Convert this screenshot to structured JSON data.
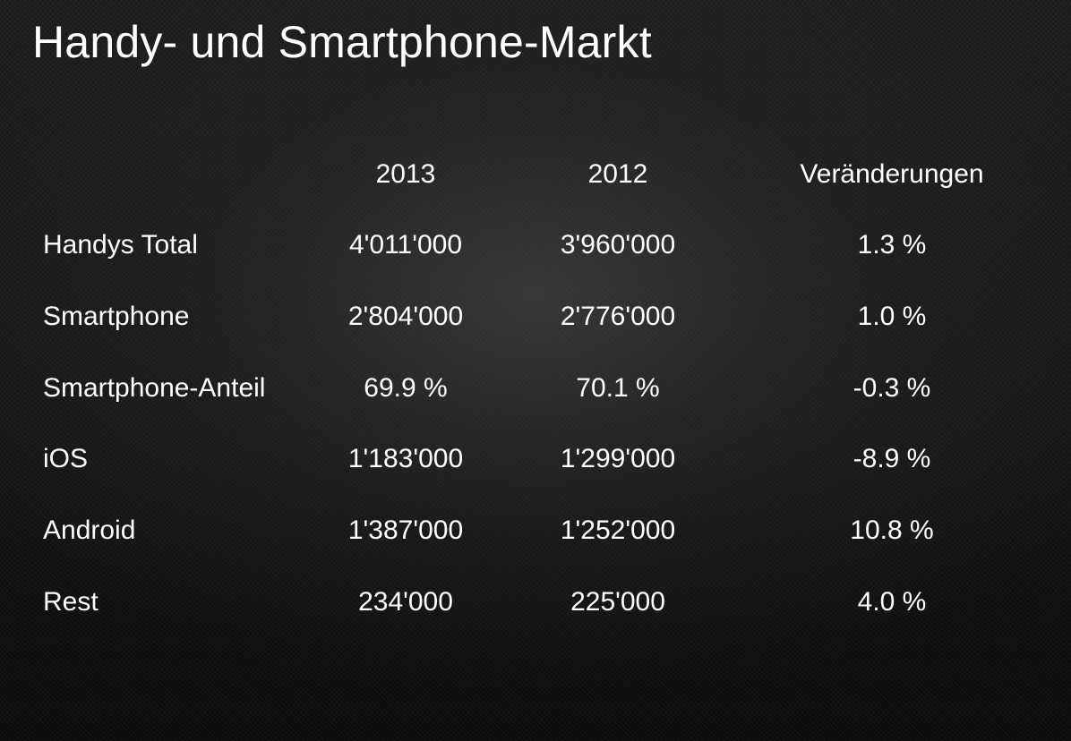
{
  "slide": {
    "title": "Handy- und Smartphone-Markt"
  },
  "table": {
    "columns": [
      "",
      "2013",
      "2012",
      "Veränderungen"
    ],
    "rows": [
      {
        "label": "Handys Total",
        "y2013": "4'011'000",
        "y2012": "3'960'000",
        "change": "1.3 %"
      },
      {
        "label": "Smartphone",
        "y2013": "2'804'000",
        "y2012": "2'776'000",
        "change": "1.0 %"
      },
      {
        "label": "Smartphone-Anteil",
        "y2013": "69.9 %",
        "y2012": "70.1 %",
        "change": "-0.3 %"
      },
      {
        "label": "iOS",
        "y2013": "1'183'000",
        "y2012": "1'299'000",
        "change": "-8.9 %"
      },
      {
        "label": "Android",
        "y2013": "1'387'000",
        "y2012": "1'252'000",
        "change": "10.8 %"
      },
      {
        "label": "Rest",
        "y2013": "234'000",
        "y2012": "225'000",
        "change": "4.0 %"
      }
    ]
  }
}
